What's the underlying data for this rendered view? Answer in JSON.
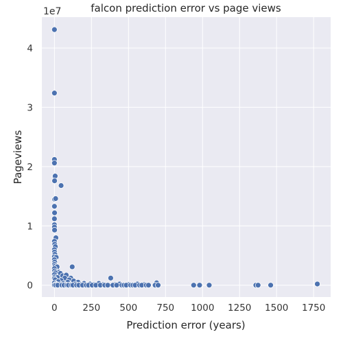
{
  "chart_data": {
    "type": "scatter",
    "title": "falcon prediction error vs page views",
    "xlabel": "Prediction error (years)",
    "ylabel": "Pageviews",
    "y_offset_label": "1e7",
    "xlim": [
      -85,
      1865
    ],
    "ylim": [
      -0.2,
      4.52
    ],
    "y_scale_factor": 10000000,
    "x_ticks": [
      0,
      250,
      500,
      750,
      1000,
      1250,
      1500,
      1750
    ],
    "x_tick_labels": [
      "0",
      "250",
      "500",
      "750",
      "1000",
      "1250",
      "1500",
      "1750"
    ],
    "y_ticks": [
      0,
      1,
      2,
      3,
      4
    ],
    "y_tick_labels": [
      "0",
      "1",
      "2",
      "3",
      "4"
    ],
    "grid": true,
    "background_color": "#eaeaf2",
    "marker_color": "#4c72b0",
    "points": [
      {
        "x": 0,
        "y": 4.31
      },
      {
        "x": 0,
        "y": 3.24
      },
      {
        "x": 0,
        "y": 2.12
      },
      {
        "x": 0,
        "y": 2.06
      },
      {
        "x": 2,
        "y": 1.83
      },
      {
        "x": 5,
        "y": 1.84
      },
      {
        "x": 1,
        "y": 1.76
      },
      {
        "x": 45,
        "y": 1.68
      },
      {
        "x": 1,
        "y": 1.45
      },
      {
        "x": 8,
        "y": 1.46
      },
      {
        "x": 0,
        "y": 1.33
      },
      {
        "x": 1,
        "y": 1.22
      },
      {
        "x": 0,
        "y": 1.12
      },
      {
        "x": 0,
        "y": 1.02
      },
      {
        "x": 0,
        "y": 0.98
      },
      {
        "x": 1,
        "y": 0.93
      },
      {
        "x": 10,
        "y": 0.8
      },
      {
        "x": 0,
        "y": 0.74
      },
      {
        "x": 2,
        "y": 0.69
      },
      {
        "x": 6,
        "y": 0.65
      },
      {
        "x": 0,
        "y": 0.6
      },
      {
        "x": 1,
        "y": 0.56
      },
      {
        "x": 3,
        "y": 0.52
      },
      {
        "x": 0,
        "y": 0.48
      },
      {
        "x": 12,
        "y": 0.47
      },
      {
        "x": 0,
        "y": 0.43
      },
      {
        "x": 2,
        "y": 0.39
      },
      {
        "x": 1,
        "y": 0.35
      },
      {
        "x": 4,
        "y": 0.32
      },
      {
        "x": 18,
        "y": 0.31
      },
      {
        "x": 0,
        "y": 0.28
      },
      {
        "x": 120,
        "y": 0.31
      },
      {
        "x": 1,
        "y": 0.24
      },
      {
        "x": 30,
        "y": 0.22
      },
      {
        "x": 6,
        "y": 0.21
      },
      {
        "x": 40,
        "y": 0.2
      },
      {
        "x": 0,
        "y": 0.18
      },
      {
        "x": 55,
        "y": 0.16
      },
      {
        "x": 80,
        "y": 0.17
      },
      {
        "x": 2,
        "y": 0.14
      },
      {
        "x": 20,
        "y": 0.13
      },
      {
        "x": 70,
        "y": 0.12
      },
      {
        "x": 110,
        "y": 0.12
      },
      {
        "x": 0,
        "y": 0.11
      },
      {
        "x": 380,
        "y": 0.12
      },
      {
        "x": 100,
        "y": 0.09
      },
      {
        "x": 5,
        "y": 0.09
      },
      {
        "x": 130,
        "y": 0.07
      },
      {
        "x": 45,
        "y": 0.08
      },
      {
        "x": 25,
        "y": 0.06
      },
      {
        "x": 160,
        "y": 0.05
      },
      {
        "x": 90,
        "y": 0.05
      },
      {
        "x": 690,
        "y": 0.04
      },
      {
        "x": 0,
        "y": 0.04
      },
      {
        "x": 60,
        "y": 0.03
      },
      {
        "x": 200,
        "y": 0.03
      },
      {
        "x": 300,
        "y": 0.03
      },
      {
        "x": 440,
        "y": 0.02
      },
      {
        "x": 10,
        "y": 0.02
      },
      {
        "x": 140,
        "y": 0.02
      },
      {
        "x": 240,
        "y": 0.02
      },
      {
        "x": 560,
        "y": 0.02
      },
      {
        "x": 1775,
        "y": 0.02
      },
      {
        "x": 15,
        "y": 0.01
      },
      {
        "x": 35,
        "y": 0.01
      },
      {
        "x": 75,
        "y": 0.01
      },
      {
        "x": 105,
        "y": 0.01
      },
      {
        "x": 175,
        "y": 0.01
      },
      {
        "x": 265,
        "y": 0.01
      },
      {
        "x": 330,
        "y": 0.01
      },
      {
        "x": 410,
        "y": 0.01
      },
      {
        "x": 500,
        "y": 0.01
      },
      {
        "x": 605,
        "y": 0.01
      },
      {
        "x": 0,
        "y": 0
      },
      {
        "x": 8,
        "y": 0
      },
      {
        "x": 22,
        "y": 0
      },
      {
        "x": 50,
        "y": 0
      },
      {
        "x": 65,
        "y": 0
      },
      {
        "x": 85,
        "y": 0
      },
      {
        "x": 95,
        "y": 0
      },
      {
        "x": 115,
        "y": 0
      },
      {
        "x": 125,
        "y": 0
      },
      {
        "x": 150,
        "y": 0
      },
      {
        "x": 165,
        "y": 0
      },
      {
        "x": 190,
        "y": 0
      },
      {
        "x": 215,
        "y": 0
      },
      {
        "x": 230,
        "y": 0
      },
      {
        "x": 255,
        "y": 0
      },
      {
        "x": 280,
        "y": 0
      },
      {
        "x": 310,
        "y": 0
      },
      {
        "x": 340,
        "y": 0
      },
      {
        "x": 360,
        "y": 0
      },
      {
        "x": 395,
        "y": 0
      },
      {
        "x": 420,
        "y": 0
      },
      {
        "x": 455,
        "y": 0
      },
      {
        "x": 470,
        "y": 0
      },
      {
        "x": 485,
        "y": 0
      },
      {
        "x": 515,
        "y": 0
      },
      {
        "x": 530,
        "y": 0
      },
      {
        "x": 545,
        "y": 0
      },
      {
        "x": 575,
        "y": 0
      },
      {
        "x": 590,
        "y": 0
      },
      {
        "x": 620,
        "y": 0
      },
      {
        "x": 635,
        "y": 0
      },
      {
        "x": 680,
        "y": 0
      },
      {
        "x": 700,
        "y": 0
      },
      {
        "x": 940,
        "y": 0
      },
      {
        "x": 980,
        "y": 0
      },
      {
        "x": 1045,
        "y": 0
      },
      {
        "x": 1360,
        "y": 0
      },
      {
        "x": 1375,
        "y": 0
      },
      {
        "x": 1460,
        "y": 0
      }
    ]
  }
}
